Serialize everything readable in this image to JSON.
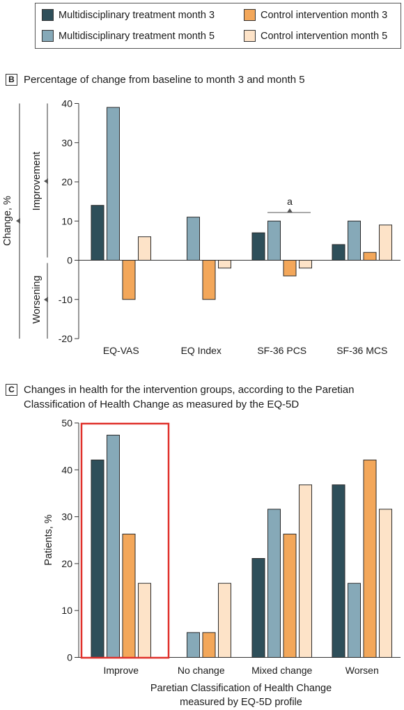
{
  "legend": {
    "items": [
      {
        "label": "Multidisciplinary treatment month 3",
        "color": "#2e4f5a"
      },
      {
        "label": "Multidisciplinary treatment month 5",
        "color": "#86a9b8"
      },
      {
        "label": "Control intervention month 3",
        "color": "#f3a75a"
      },
      {
        "label": "Control intervention month 5",
        "color": "#fde3c8"
      }
    ]
  },
  "panel_b": {
    "letter": "B",
    "title": "Percentage of change from baseline to month 3 and month 5"
  },
  "panel_c": {
    "letter": "C",
    "title_line1": "Changes in health for the intervention groups, according to the Paretian",
    "title_line2": "Classification of Health Change as measured by the EQ-5D"
  },
  "chart_data": [
    {
      "type": "bar",
      "title": "Percentage of change from baseline to month 3 and month 5",
      "ylabel": "Change, %",
      "ylim": [
        -20,
        40
      ],
      "yticks": [
        40,
        30,
        20,
        10,
        0,
        -10,
        -20
      ],
      "direction_labels": {
        "up": "Improvement",
        "down": "Worsening"
      },
      "categories": [
        "EQ-VAS",
        "EQ Index",
        "SF-36 PCS",
        "SF-36 MCS"
      ],
      "series": [
        {
          "name": "Multidisciplinary treatment month 3",
          "values": [
            14,
            null,
            7,
            4
          ]
        },
        {
          "name": "Multidisciplinary treatment month 5",
          "values": [
            39,
            11,
            10,
            10
          ]
        },
        {
          "name": "Control intervention month 3",
          "values": [
            -10,
            -10,
            -4,
            2
          ]
        },
        {
          "name": "Control intervention month 5",
          "values": [
            6,
            -2,
            -2,
            9
          ]
        }
      ],
      "annotation": {
        "text": "a",
        "category": "SF-36 PCS"
      },
      "grid": false
    },
    {
      "type": "bar",
      "title": "Changes in health for the intervention groups, according to the Paretian Classification of Health Change as measured by the EQ-5D",
      "ylabel": "Patients, %",
      "xlabel_line1": "Paretian Classification of Health Change",
      "xlabel_line2": "measured by EQ-5D profile",
      "ylim": [
        0,
        50
      ],
      "yticks": [
        50,
        40,
        30,
        20,
        10,
        0
      ],
      "categories": [
        "Improve",
        "No change",
        "Mixed change",
        "Worsen"
      ],
      "series": [
        {
          "name": "Multidisciplinary treatment month 3",
          "values": [
            42.1,
            0,
            21.1,
            36.8
          ]
        },
        {
          "name": "Multidisciplinary treatment month 5",
          "values": [
            47.4,
            5.3,
            31.6,
            15.8
          ]
        },
        {
          "name": "Control intervention month 3",
          "values": [
            26.3,
            5.3,
            26.3,
            42.1
          ]
        },
        {
          "name": "Control intervention month 5",
          "values": [
            15.8,
            15.8,
            36.8,
            31.6
          ]
        }
      ],
      "highlight": {
        "category": "Improve",
        "color": "#e0302a"
      },
      "grid": false
    }
  ]
}
